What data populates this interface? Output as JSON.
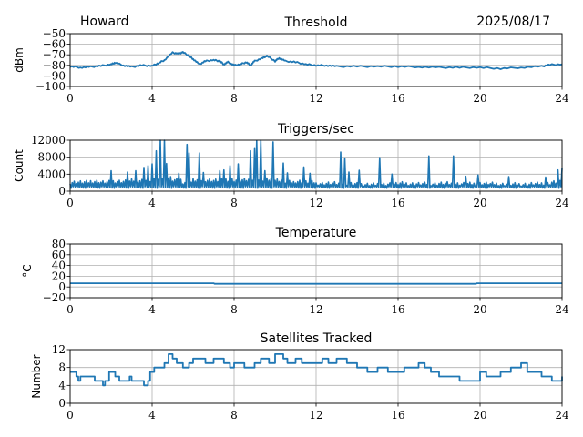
{
  "header": {
    "station": "Howard",
    "date": "2025/08/17"
  },
  "chart_data": [
    {
      "type": "line",
      "title": "Threshold",
      "xlabel": "",
      "ylabel": "dBm",
      "xlim": [
        0,
        24
      ],
      "ylim": [
        -100,
        -50
      ],
      "xticks": [
        "0",
        "4",
        "8",
        "12",
        "16",
        "20",
        "24"
      ],
      "yticks": [
        "−50",
        "−60",
        "−70",
        "−80",
        "−90",
        "−100"
      ],
      "ytick_values": [
        -50,
        -60,
        -70,
        -80,
        -90,
        -100
      ],
      "grid": true,
      "color": "#1f77b4",
      "points": [
        [
          0,
          -81
        ],
        [
          0.5,
          -82
        ],
        [
          1,
          -81.5
        ],
        [
          1.5,
          -80.5
        ],
        [
          2,
          -79
        ],
        [
          2.2,
          -77.5
        ],
        [
          2.6,
          -80
        ],
        [
          3,
          -81.5
        ],
        [
          3.5,
          -80
        ],
        [
          4,
          -80.5
        ],
        [
          4.3,
          -78
        ],
        [
          4.6,
          -75
        ],
        [
          5,
          -68
        ],
        [
          5.3,
          -69
        ],
        [
          5.5,
          -67.5
        ],
        [
          5.8,
          -71
        ],
        [
          6,
          -74
        ],
        [
          6.3,
          -79
        ],
        [
          6.6,
          -76
        ],
        [
          7,
          -75
        ],
        [
          7.3,
          -76
        ],
        [
          7.5,
          -79
        ],
        [
          7.7,
          -77
        ],
        [
          8,
          -80
        ],
        [
          8.3,
          -79
        ],
        [
          8.6,
          -77
        ],
        [
          8.8,
          -80
        ],
        [
          9,
          -76
        ],
        [
          9.4,
          -73
        ],
        [
          9.6,
          -71
        ],
        [
          10,
          -76
        ],
        [
          10.2,
          -73
        ],
        [
          10.5,
          -76
        ],
        [
          11,
          -77
        ],
        [
          11.5,
          -79
        ],
        [
          12,
          -80
        ],
        [
          12.5,
          -80
        ],
        [
          13,
          -81
        ],
        [
          14,
          -81
        ],
        [
          15,
          -81
        ],
        [
          16,
          -81
        ],
        [
          17,
          -81.5
        ],
        [
          18,
          -82
        ],
        [
          19,
          -82
        ],
        [
          20,
          -82
        ],
        [
          21,
          -83
        ],
        [
          22,
          -82
        ],
        [
          23,
          -81
        ],
        [
          23.4,
          -79.5
        ],
        [
          24,
          -79
        ]
      ]
    },
    {
      "type": "line",
      "title": "Triggers/sec",
      "xlabel": "",
      "ylabel": "Count",
      "xlim": [
        0,
        24
      ],
      "ylim": [
        0,
        12000
      ],
      "xticks": [
        "0",
        "4",
        "8",
        "12",
        "16",
        "20",
        "24"
      ],
      "yticks": [
        "12000",
        "8000",
        "4000",
        "0"
      ],
      "ytick_values": [
        12000,
        8000,
        4000,
        0
      ],
      "grid": true,
      "color": "#1f77b4",
      "baseline": [
        2000,
        2000,
        2200,
        2000,
        2200,
        2200,
        2400,
        2400,
        2500,
        3000,
        2500,
        2000,
        2500,
        2500,
        2400,
        2600,
        2500,
        2500,
        2500,
        2600,
        2500,
        2000,
        2200,
        2000,
        1700,
        1700,
        1600,
        1600,
        1500,
        1500,
        1600,
        1600,
        1700,
        1600,
        1600,
        1600,
        1700,
        1600,
        1600,
        1600,
        1700,
        1600,
        1500,
        1500,
        1500,
        1600,
        1700,
        2000,
        2500
      ],
      "spikes": [
        [
          2,
          4800
        ],
        [
          2.8,
          4500
        ],
        [
          3.2,
          4800
        ],
        [
          3.6,
          5600
        ],
        [
          3.8,
          6000
        ],
        [
          4.0,
          6400
        ],
        [
          4.2,
          9500
        ],
        [
          4.4,
          12000
        ],
        [
          4.6,
          12000
        ],
        [
          4.7,
          6500
        ],
        [
          5.3,
          4200
        ],
        [
          5.7,
          11000
        ],
        [
          5.8,
          9000
        ],
        [
          6.3,
          9000
        ],
        [
          6.5,
          4400
        ],
        [
          7.3,
          4800
        ],
        [
          7.5,
          5000
        ],
        [
          7.8,
          6000
        ],
        [
          8.2,
          6400
        ],
        [
          8.8,
          9500
        ],
        [
          9.0,
          10000
        ],
        [
          9.1,
          11800
        ],
        [
          9.3,
          12000
        ],
        [
          9.5,
          4800
        ],
        [
          9.9,
          11600
        ],
        [
          10.4,
          6600
        ],
        [
          10.6,
          4300
        ],
        [
          11.4,
          5700
        ],
        [
          11.7,
          4200
        ],
        [
          13.2,
          9200
        ],
        [
          13.4,
          7800
        ],
        [
          13.6,
          4500
        ],
        [
          14.1,
          4900
        ],
        [
          15.1,
          7900
        ],
        [
          15.7,
          4000
        ],
        [
          17.5,
          8300
        ],
        [
          18.7,
          8300
        ],
        [
          19.3,
          3500
        ],
        [
          19.9,
          3800
        ],
        [
          21.4,
          3400
        ],
        [
          23.2,
          3300
        ],
        [
          23.8,
          5000
        ],
        [
          24,
          5500
        ]
      ]
    },
    {
      "type": "line",
      "title": "Temperature",
      "xlabel": "",
      "ylabel": "°C",
      "xlim": [
        0,
        24
      ],
      "ylim": [
        -20,
        80
      ],
      "xticks": [
        "0",
        "4",
        "8",
        "12",
        "16",
        "20",
        "24"
      ],
      "yticks": [
        "80",
        "60",
        "40",
        "20",
        "0",
        "−20"
      ],
      "ytick_values": [
        80,
        60,
        40,
        20,
        0,
        -20
      ],
      "grid": true,
      "color": "#1f77b4",
      "points": [
        [
          0,
          7
        ],
        [
          7,
          7
        ],
        [
          7.05,
          6
        ],
        [
          19.8,
          6
        ],
        [
          19.85,
          7
        ],
        [
          24,
          7
        ]
      ]
    },
    {
      "type": "line",
      "title": "Satellites Tracked",
      "xlabel": "",
      "ylabel": "Number",
      "xlim": [
        0,
        24
      ],
      "ylim": [
        0,
        12
      ],
      "xticks": [
        "0",
        "4",
        "8",
        "12",
        "16",
        "20",
        "24"
      ],
      "yticks": [
        "12",
        "8",
        "4",
        "0"
      ],
      "ytick_values": [
        12,
        8,
        4,
        0
      ],
      "grid": true,
      "color": "#1f77b4",
      "step": true,
      "points": [
        [
          0,
          7
        ],
        [
          0.3,
          6
        ],
        [
          0.4,
          5
        ],
        [
          0.5,
          6
        ],
        [
          1,
          6
        ],
        [
          1.2,
          5
        ],
        [
          1.5,
          5
        ],
        [
          1.6,
          4
        ],
        [
          1.7,
          5
        ],
        [
          1.9,
          7
        ],
        [
          2.2,
          6
        ],
        [
          2.4,
          5
        ],
        [
          2.9,
          6
        ],
        [
          3,
          5
        ],
        [
          3.4,
          5
        ],
        [
          3.6,
          4
        ],
        [
          3.8,
          5
        ],
        [
          3.9,
          7
        ],
        [
          4.1,
          8
        ],
        [
          4.6,
          9
        ],
        [
          4.8,
          11
        ],
        [
          5,
          10
        ],
        [
          5.2,
          9
        ],
        [
          5.5,
          8
        ],
        [
          5.8,
          9
        ],
        [
          6,
          10
        ],
        [
          6.6,
          9
        ],
        [
          7,
          10
        ],
        [
          7.5,
          9
        ],
        [
          7.8,
          8
        ],
        [
          8,
          9
        ],
        [
          8.5,
          8
        ],
        [
          9,
          9
        ],
        [
          9.3,
          10
        ],
        [
          9.7,
          9
        ],
        [
          10,
          11
        ],
        [
          10.4,
          10
        ],
        [
          10.6,
          9
        ],
        [
          11,
          10
        ],
        [
          11.3,
          9
        ],
        [
          12,
          9
        ],
        [
          12.3,
          10
        ],
        [
          12.6,
          9
        ],
        [
          13,
          10
        ],
        [
          13.5,
          9
        ],
        [
          14,
          8
        ],
        [
          14.5,
          7
        ],
        [
          15,
          8
        ],
        [
          15.5,
          7
        ],
        [
          16,
          7
        ],
        [
          16.3,
          8
        ],
        [
          17,
          9
        ],
        [
          17.3,
          8
        ],
        [
          17.6,
          7
        ],
        [
          18,
          6
        ],
        [
          19,
          5
        ],
        [
          19.5,
          5
        ],
        [
          20,
          7
        ],
        [
          20.3,
          6
        ],
        [
          21,
          7
        ],
        [
          21.5,
          8
        ],
        [
          22,
          9
        ],
        [
          22.3,
          7
        ],
        [
          22.8,
          7
        ],
        [
          23,
          6
        ],
        [
          23.5,
          5
        ],
        [
          24,
          6
        ]
      ]
    }
  ]
}
